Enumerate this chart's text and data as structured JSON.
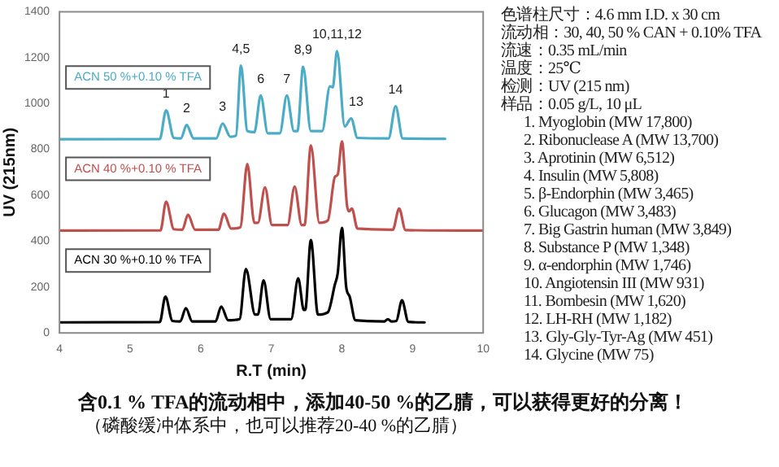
{
  "chart_data": [
    {
      "type": "line",
      "xlabel": "R.T (min)",
      "ylabel": "UV (215nm)",
      "xlim": [
        4,
        10
      ],
      "xticks": [
        4,
        5,
        6,
        7,
        8,
        9,
        10
      ],
      "ylim": [
        0,
        1400
      ],
      "yticks": [
        0,
        200,
        400,
        600,
        800,
        1000,
        1200,
        1400
      ],
      "grid": false,
      "marker": "none",
      "line_style": "solid",
      "series": [
        {
          "name": "ACN 50 %+0.10 % TFA",
          "color": "#4bacc6",
          "x": [
            4.0,
            5.42,
            5.51,
            5.62,
            5.72,
            5.8,
            5.9,
            6.22,
            6.31,
            6.42,
            6.5,
            6.57,
            6.66,
            6.76,
            6.85,
            6.95,
            7.12,
            7.22,
            7.32,
            7.37,
            7.45,
            7.56,
            7.72,
            7.83,
            7.87,
            7.93,
            8.04,
            8.13,
            8.22,
            8.66,
            8.76,
            8.86,
            9.46
          ],
          "values": [
            844,
            845,
            970,
            850,
            848,
            906,
            848,
            848,
            913,
            855,
            860,
            1165,
            880,
            875,
            1035,
            870,
            870,
            1035,
            880,
            880,
            1160,
            880,
            880,
            1075,
            1070,
            1228,
            900,
            935,
            850,
            848,
            988,
            848,
            846
          ]
        },
        {
          "name": "ACN 40 %+0.10 % TFA",
          "color": "#c0504d",
          "x": [
            4.0,
            5.43,
            5.51,
            5.62,
            5.74,
            5.82,
            5.92,
            6.25,
            6.33,
            6.43,
            6.56,
            6.66,
            6.76,
            6.81,
            6.91,
            7.01,
            7.23,
            7.33,
            7.43,
            7.47,
            7.56,
            7.68,
            7.8,
            7.9,
            7.94,
            8.0,
            8.07,
            8.1,
            8.14,
            8.22,
            8.72,
            8.81,
            8.9,
            10.0
          ],
          "values": [
            446,
            447,
            572,
            452,
            450,
            515,
            450,
            450,
            520,
            455,
            460,
            736,
            480,
            480,
            634,
            470,
            470,
            638,
            470,
            470,
            817,
            480,
            490,
            680,
            690,
            835,
            560,
            530,
            542,
            455,
            450,
            542,
            448,
            446
          ]
        },
        {
          "name": "ACN 30 %+0.10 % TFA",
          "color": "#000000",
          "x": [
            4.0,
            5.42,
            5.5,
            5.6,
            5.71,
            5.79,
            5.88,
            6.21,
            6.29,
            6.39,
            6.55,
            6.64,
            6.77,
            6.81,
            6.89,
            6.99,
            7.28,
            7.38,
            7.46,
            7.48,
            7.56,
            7.66,
            7.8,
            7.9,
            7.94,
            8.0,
            8.06,
            8.11,
            8.19,
            8.6,
            8.65,
            8.7,
            8.77,
            8.85,
            8.94,
            9.17
          ],
          "values": [
            46,
            47,
            158,
            52,
            50,
            108,
            50,
            50,
            115,
            55,
            60,
            279,
            80,
            80,
            229,
            60,
            60,
            238,
            100,
            100,
            405,
            80,
            90,
            211,
            260,
            458,
            200,
            158,
            55,
            50,
            60,
            50,
            52,
            142,
            48,
            46
          ]
        }
      ],
      "annotations": [
        {
          "text": "1",
          "x": 5.51,
          "y": 970
        },
        {
          "text": "2",
          "x": 5.8,
          "y": 906
        },
        {
          "text": "3",
          "x": 6.31,
          "y": 913
        },
        {
          "text": "4,5",
          "x": 6.57,
          "y": 1165
        },
        {
          "text": "6",
          "x": 6.85,
          "y": 1035
        },
        {
          "text": "7",
          "x": 7.22,
          "y": 1035
        },
        {
          "text": "8,9",
          "x": 7.45,
          "y": 1160
        },
        {
          "text": "10,11,12",
          "x": 7.93,
          "y": 1228
        },
        {
          "text": "13",
          "x": 8.2,
          "y": 935
        },
        {
          "text": "14",
          "x": 8.76,
          "y": 988
        },
        "含0.1 % TFA的流动相中，添加40-50 %的乙腈，可以获得更好的分离！",
        "（磷酸缓冲体系中，也可以推荐20-40 %的乙腈）"
      ]
    },
    {
      "type": "other",
      "annotations": [
        "色谱柱尺寸：4.6 mm I.D. x 30 cm",
        "流动相：30, 40, 50 % CAN + 0.10% TFA",
        "流速：0.35 mL/min",
        "温度：25℃",
        "检测：UV (215 nm)",
        "样品：0.05 g/L, 10 μL",
        "1. Myoglobin (MW 17,800)",
        "2. Ribonuclease A (MW 13,700)",
        "3. Aprotinin (MW 6,512)",
        "4. Insulin (MW 5,808)",
        "5. β-Endorphin (MW 3,465)",
        "6. Glucagon (MW 3,483)",
        "7. Big Gastrin human (MW 3,849)",
        "8. Substance P (MW 1,348)",
        "9. α-endorphin (MW 1,746)",
        "10. Angiotensin III (MW 931)",
        "11. Bombesin (MW 1,620)",
        "12. LH-RH (MW 1,182)",
        "13. Gly-Gly-Tyr-Ag (MW 451)",
        "14. Glycine (MW 75)"
      ]
    }
  ]
}
